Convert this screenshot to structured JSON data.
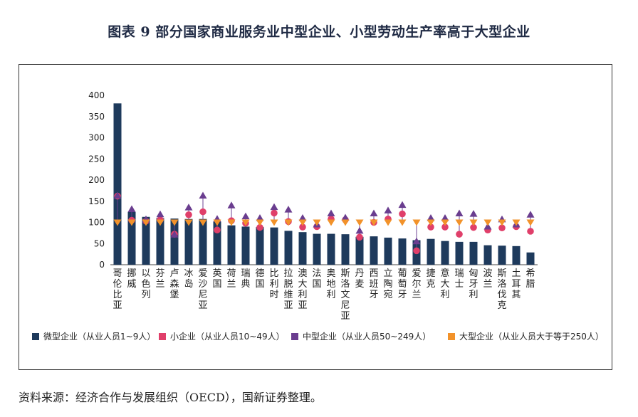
{
  "title": "图表 9  部分国家商业服务业中型企业、小型劳动生产率高于大型企业",
  "source": "资料来源：经济合作与发展组织（OECD），国新证券整理。",
  "chart_data": {
    "type": "bar",
    "title": "图表 9  部分国家商业服务业中型企业、小型劳动生产率高于大型企业",
    "ylim": [
      0,
      400
    ],
    "yticks": [
      0,
      50,
      100,
      150,
      200,
      250,
      300,
      350,
      400
    ],
    "categories": [
      "哥伦比亚",
      "挪威",
      "以色列",
      "芬兰",
      "卢森堡",
      "冰岛",
      "爱沙尼亚",
      "英国",
      "荷兰",
      "瑞典",
      "德国",
      "比利时",
      "拉脱维亚",
      "澳大利亚",
      "法国",
      "奥地利",
      "斯洛文尼亚",
      "丹麦",
      "西班牙",
      "立陶宛",
      "葡萄牙",
      "爱尔兰",
      "捷克",
      "意大利",
      "瑞士",
      "匈牙利",
      "波兰",
      "斯洛伐克",
      "土耳其",
      "希腊"
    ],
    "series": [
      {
        "name": "微型企业（从业人员1~9人）",
        "kind": "bar",
        "color": "#1e3a5c",
        "values": [
          381,
          125,
          113,
          110,
          109,
          108,
          108,
          102,
          93,
          90,
          89,
          88,
          80,
          77,
          73,
          73,
          72,
          66,
          67,
          64,
          62,
          58,
          61,
          56,
          54,
          54,
          46,
          45,
          44,
          29
        ]
      },
      {
        "name": "小企业（从业人员10~49人）",
        "kind": "circle",
        "color": "#e03f6a",
        "values": [
          162,
          105,
          103,
          106,
          72,
          118,
          125,
          82,
          104,
          98,
          88,
          122,
          102,
          89,
          90,
          108,
          106,
          65,
          100,
          108,
          120,
          33,
          89,
          89,
          72,
          88,
          82,
          87,
          90,
          79
        ]
      },
      {
        "name": "中型企业（从业人员50~249人）",
        "kind": "triangle",
        "color": "#6a3d8f",
        "values": [
          163,
          131,
          107,
          119,
          71,
          135,
          163,
          108,
          140,
          114,
          110,
          136,
          130,
          110,
          95,
          121,
          111,
          80,
          121,
          128,
          141,
          55,
          110,
          110,
          121,
          120,
          90,
          107,
          95,
          118
        ]
      },
      {
        "name": "大型企业（从业人员大于等于250人）",
        "kind": "tri-down",
        "color": "#f2922a",
        "values": [
          100,
          100,
          100,
          100,
          100,
          100,
          100,
          100,
          100,
          100,
          100,
          100,
          100,
          100,
          100,
          100,
          100,
          100,
          100,
          100,
          100,
          100,
          100,
          100,
          100,
          100,
          100,
          100,
          100,
          100
        ]
      }
    ]
  }
}
